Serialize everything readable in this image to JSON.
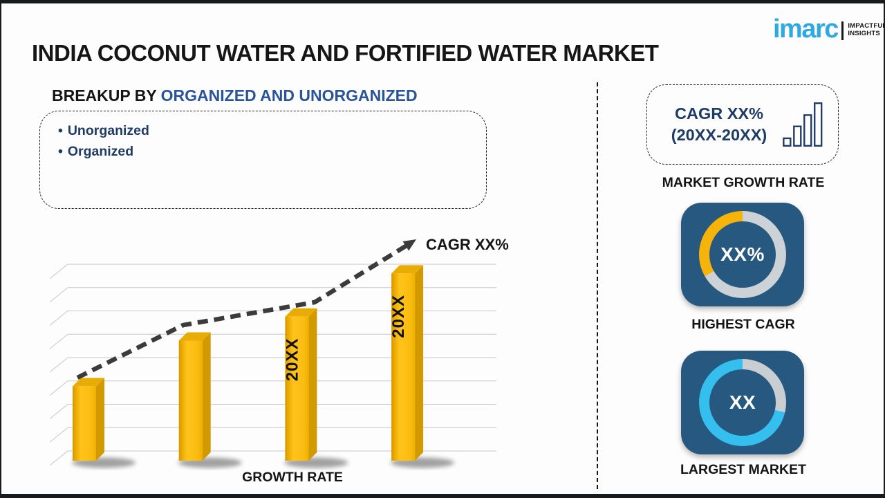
{
  "header": {
    "title": "INDIA COCONUT WATER AND FORTIFIED WATER MARKET",
    "logo": {
      "brand": "imarc",
      "tagline_line1": "IMPACTFUL",
      "tagline_line2": "INSIGHTS",
      "brand_color": "#2fa9e0"
    }
  },
  "breakup": {
    "heading_prefix": "BREAKUP BY ",
    "heading_accent": "ORGANIZED AND UNORGANIZED",
    "bullet": "•",
    "items": [
      "Unorganized",
      "Organized"
    ]
  },
  "chart_data": {
    "type": "bar",
    "categories": [
      "",
      "",
      "20XX",
      "20XX"
    ],
    "values": [
      31,
      50,
      60,
      78
    ],
    "ylim": [
      0,
      100
    ],
    "xlabel": "GROWTH RATE",
    "ylabel": "",
    "title": "",
    "grid": true,
    "gridline_count": 9,
    "trend_label": "CAGR XX%",
    "trend_points": [
      [
        52,
        211
      ],
      [
        205,
        135
      ],
      [
        395,
        102
      ],
      [
        528,
        20
      ]
    ],
    "arrow_tip": [
      542,
      11
    ],
    "bar_color": "#F9BB0E",
    "bar_side_color": "#D39A00",
    "bar_top_color": "#E8AC04",
    "trend_color": "#3b3b3b",
    "grid_color": "#c6c6c6"
  },
  "right_panel": {
    "cagr_box": {
      "line1": "CAGR XX%",
      "line2": "(20XX-20XX)",
      "icon_color": "#1e3a66"
    },
    "market_growth_rate_label": "MARKET GROWTH RATE",
    "highest_cagr": {
      "value": "XX%",
      "label": "HIGHEST CAGR",
      "card_color": "#27587f",
      "ring": {
        "segments": [
          {
            "color": "#CDD2D7",
            "from": 0,
            "to": 240
          },
          {
            "color": "#F6B40B",
            "from": 240,
            "to": 360
          }
        ]
      }
    },
    "largest_market": {
      "value": "XX",
      "label": "LARGEST MARKET",
      "card_color": "#27587f",
      "ring": {
        "segments": [
          {
            "color": "#C9CED3",
            "from": 0,
            "to": 103
          },
          {
            "color": "#34BFEF",
            "from": 103,
            "to": 360
          }
        ]
      }
    }
  }
}
